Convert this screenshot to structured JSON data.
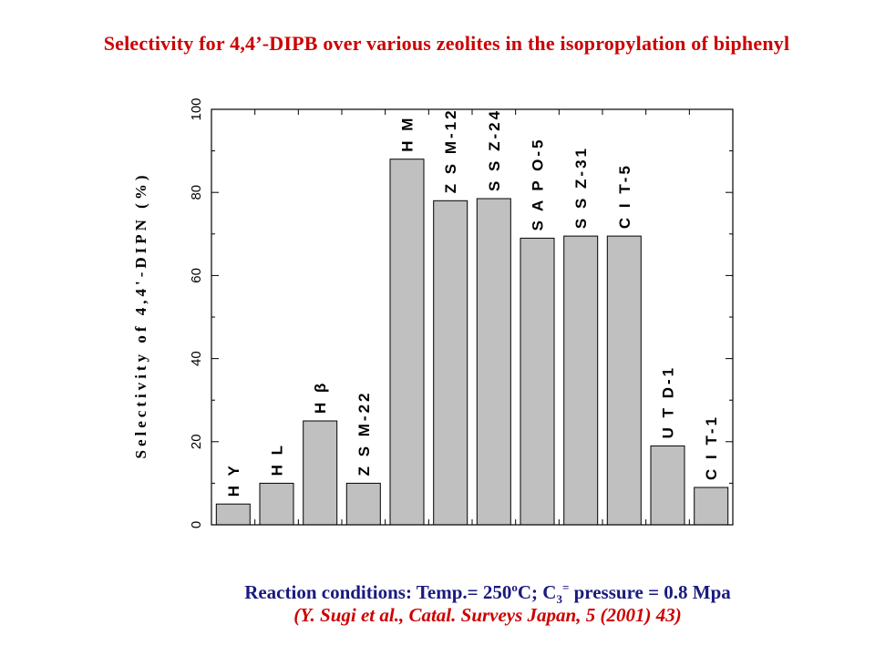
{
  "title": "Selectivity for 4,4’-DIPB over various zeolites in the isopropylation of biphenyl",
  "footer": {
    "conditions_a": "Reaction conditions: Temp.= 250",
    "conditions_sup": "o",
    "conditions_b": "C; C",
    "conditions_sub": "3",
    "conditions_sup2": "=",
    "conditions_c": " pressure = 0.8 Mpa",
    "reference": "(Y. Sugi et al., Catal. Surveys Japan, 5 (2001) 43)"
  },
  "colors": {
    "title": "#cc0000",
    "conditions": "#1a1a80",
    "reference": "#cc0000",
    "bar_fill": "#c0c0c0",
    "bar_stroke": "#000000"
  },
  "chart_data": {
    "type": "bar",
    "categories": [
      "H Y",
      "H L",
      "H β",
      "Z S M-22",
      "H M",
      "Z S M-12",
      "S S Z-24",
      "S A P O-5",
      "S S Z-31",
      "C I T-5",
      "U T D-1",
      "C I T-1"
    ],
    "values": [
      5,
      10,
      25,
      10,
      88,
      78,
      78.5,
      69,
      69.5,
      69.5,
      19,
      9
    ],
    "ylabel": "Selectivity of 4,4'-DIPN (%)",
    "ylim": [
      0,
      100
    ],
    "yticks": [
      0,
      20,
      40,
      60,
      80,
      100
    ],
    "grid": false,
    "legend": "none"
  }
}
